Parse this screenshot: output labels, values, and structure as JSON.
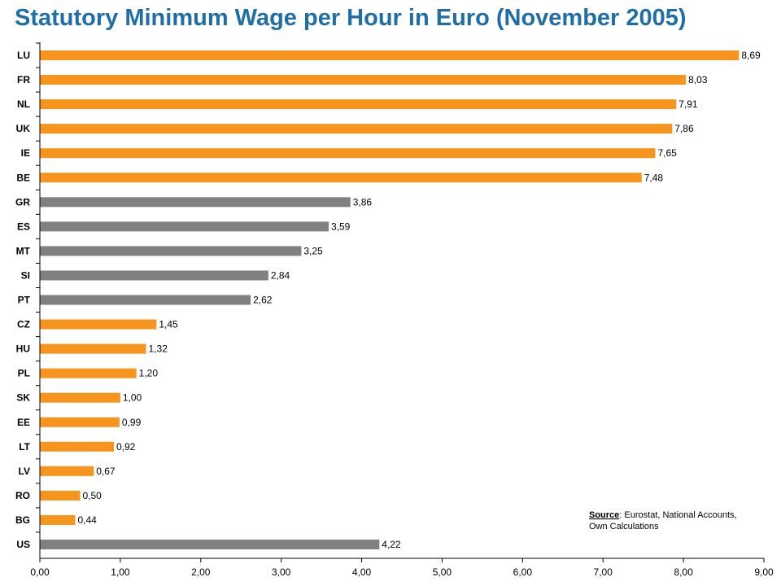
{
  "chart_data": {
    "type": "bar",
    "orientation": "horizontal",
    "title": "Statutory Minimum Wage per Hour in Euro (November 2005)",
    "categories": [
      "LU",
      "FR",
      "NL",
      "UK",
      "IE",
      "BE",
      "GR",
      "ES",
      "MT",
      "SI",
      "PT",
      "CZ",
      "HU",
      "PL",
      "SK",
      "EE",
      "LT",
      "LV",
      "RO",
      "BG",
      "US"
    ],
    "values": [
      8.69,
      8.03,
      7.91,
      7.86,
      7.65,
      7.48,
      3.86,
      3.59,
      3.25,
      2.84,
      2.62,
      1.45,
      1.32,
      1.2,
      1.0,
      0.99,
      0.92,
      0.67,
      0.5,
      0.44,
      4.22
    ],
    "value_labels": [
      "8,69",
      "8,03",
      "7,91",
      "7,86",
      "7,65",
      "7,48",
      "3,86",
      "3,59",
      "3,25",
      "2,84",
      "2,62",
      "1,45",
      "1,32",
      "1,20",
      "1,00",
      "0,99",
      "0,92",
      "0,67",
      "0,50",
      "0,44",
      "4,22"
    ],
    "bar_colors": [
      "#f7941d",
      "#f7941d",
      "#f7941d",
      "#f7941d",
      "#f7941d",
      "#f7941d",
      "#808080",
      "#808080",
      "#808080",
      "#808080",
      "#808080",
      "#f7941d",
      "#f7941d",
      "#f7941d",
      "#f7941d",
      "#f7941d",
      "#f7941d",
      "#f7941d",
      "#f7941d",
      "#f7941d",
      "#808080"
    ],
    "xlim": [
      0,
      9
    ],
    "x_ticks": [
      "0,00",
      "1,00",
      "2,00",
      "3,00",
      "4,00",
      "5,00",
      "6,00",
      "7,00",
      "8,00",
      "9,00"
    ],
    "grid": false,
    "legend": "none",
    "source": {
      "label": "Source",
      "text_line1": ": Eurostat, National Accounts,",
      "text_line2": "Own Calculations"
    }
  }
}
